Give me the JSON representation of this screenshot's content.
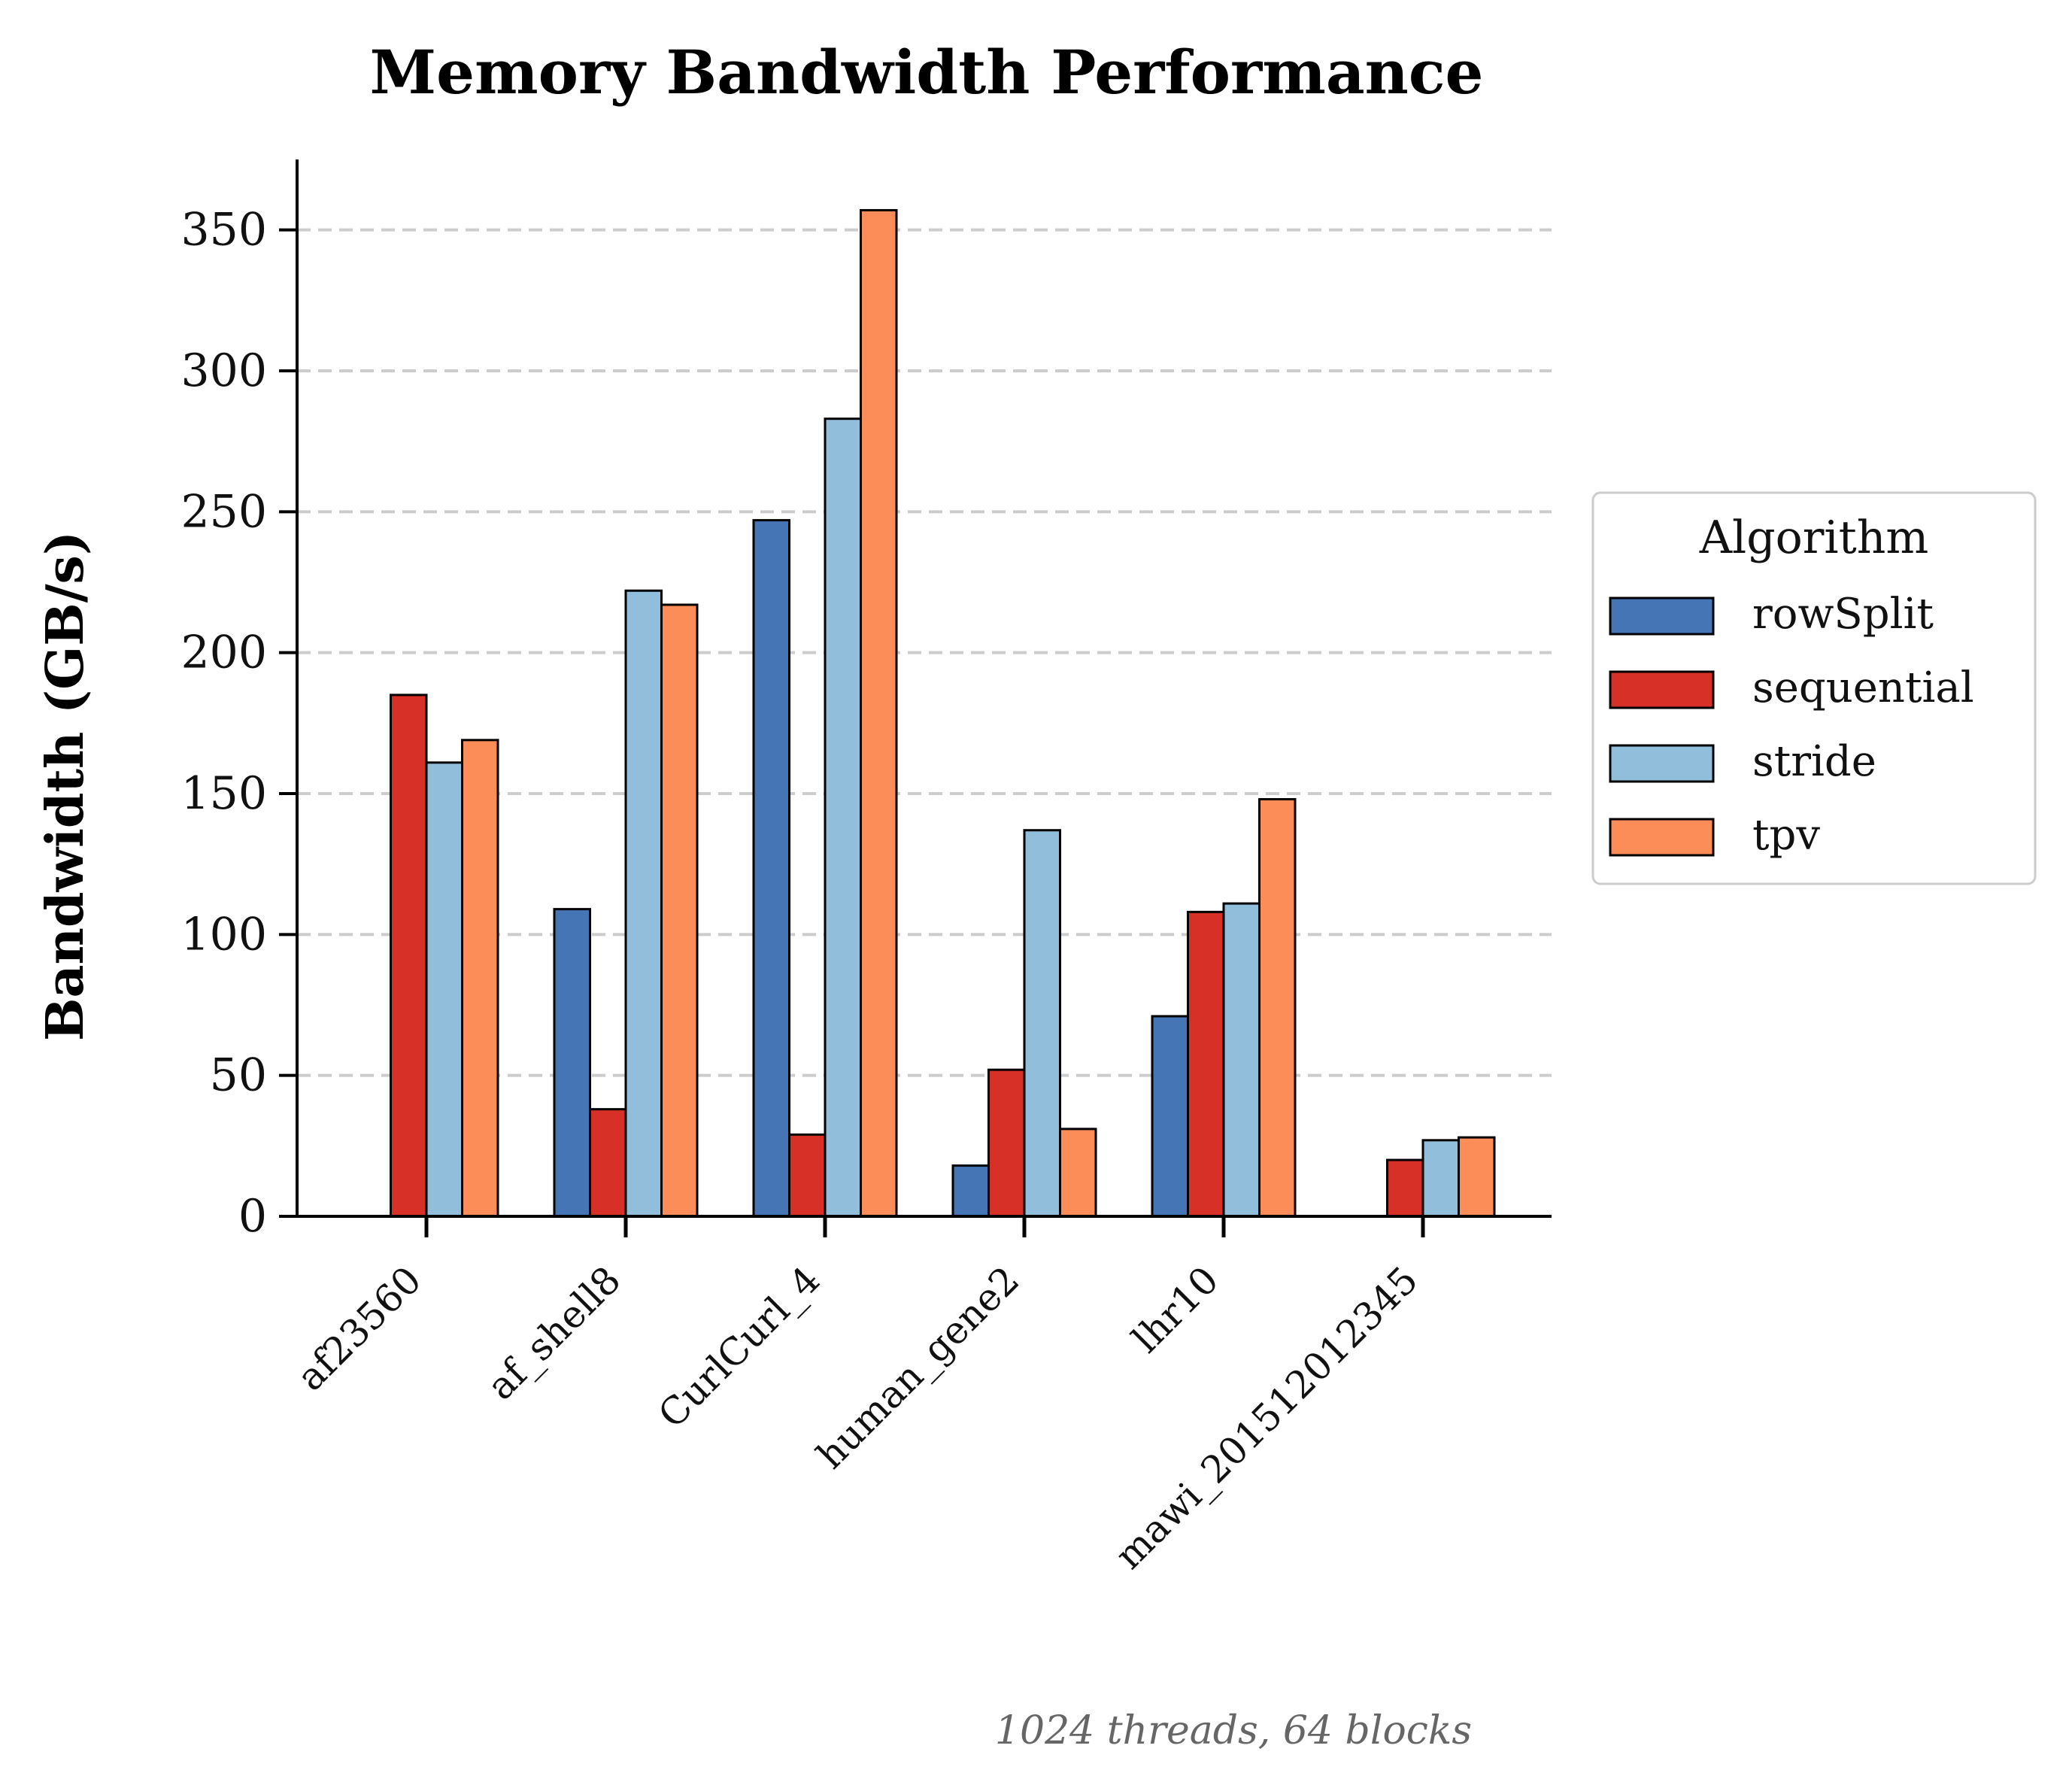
{
  "chart_data": {
    "type": "bar",
    "title": "Memory Bandwidth Performance",
    "xlabel": "",
    "ylabel": "Bandwidth (GB/s)",
    "ylim": [
      0,
      375
    ],
    "yticks": [
      0,
      50,
      100,
      150,
      200,
      250,
      300,
      350
    ],
    "grid": "y dashed",
    "categories": [
      "af23560",
      "af_shell8",
      "CurlCurl_4",
      "human_gene2",
      "lhr10",
      "mawi_201512012345"
    ],
    "legend": {
      "title": "Algorithm",
      "placement": "center-right outside"
    },
    "series": [
      {
        "name": "rowSplit",
        "color": "#4575b4",
        "values": [
          0,
          109,
          247,
          18,
          71,
          0
        ]
      },
      {
        "name": "sequential",
        "color": "#d73027",
        "values": [
          185,
          38,
          29,
          52,
          108,
          20
        ]
      },
      {
        "name": "stride",
        "color": "#91bfdb",
        "values": [
          161,
          222,
          283,
          137,
          111,
          27
        ]
      },
      {
        "name": "tpv",
        "color": "#fc8d59",
        "values": [
          169,
          217,
          357,
          31,
          148,
          28
        ]
      }
    ],
    "annotation": "1024 threads, 64 blocks"
  }
}
